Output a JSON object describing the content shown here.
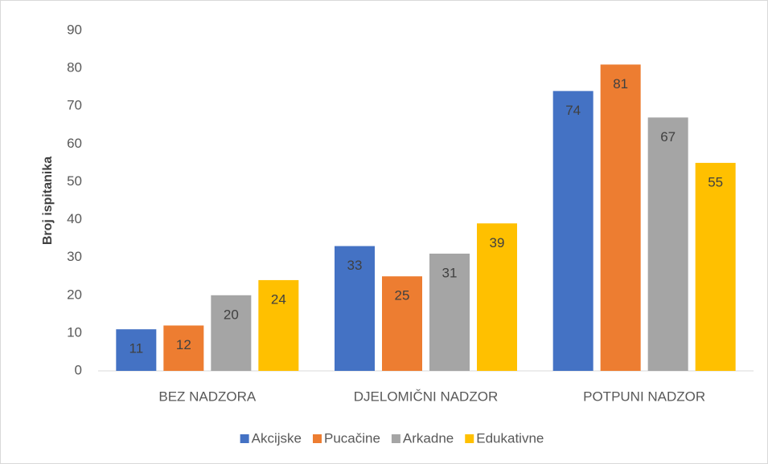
{
  "chart_data": {
    "type": "bar",
    "ylabel": "Broj ispitanika",
    "categories": [
      "BEZ NADZORA",
      "DJELOMIČNI NADZOR",
      "POTPUNI NADZOR"
    ],
    "series": [
      {
        "name": "Akcijske",
        "color": "#4472c4",
        "values": [
          11,
          33,
          74
        ]
      },
      {
        "name": "Pucačine",
        "color": "#ed7d31",
        "values": [
          12,
          25,
          81
        ]
      },
      {
        "name": "Arkadne",
        "color": "#a5a5a5",
        "values": [
          20,
          31,
          67
        ]
      },
      {
        "name": "Edukativne",
        "color": "#ffc000",
        "values": [
          24,
          39,
          55
        ]
      }
    ],
    "ylim": [
      0,
      90
    ],
    "yticks": [
      0,
      10,
      20,
      30,
      40,
      50,
      60,
      70,
      80,
      90
    ],
    "grid": false,
    "legend": "bottom"
  }
}
